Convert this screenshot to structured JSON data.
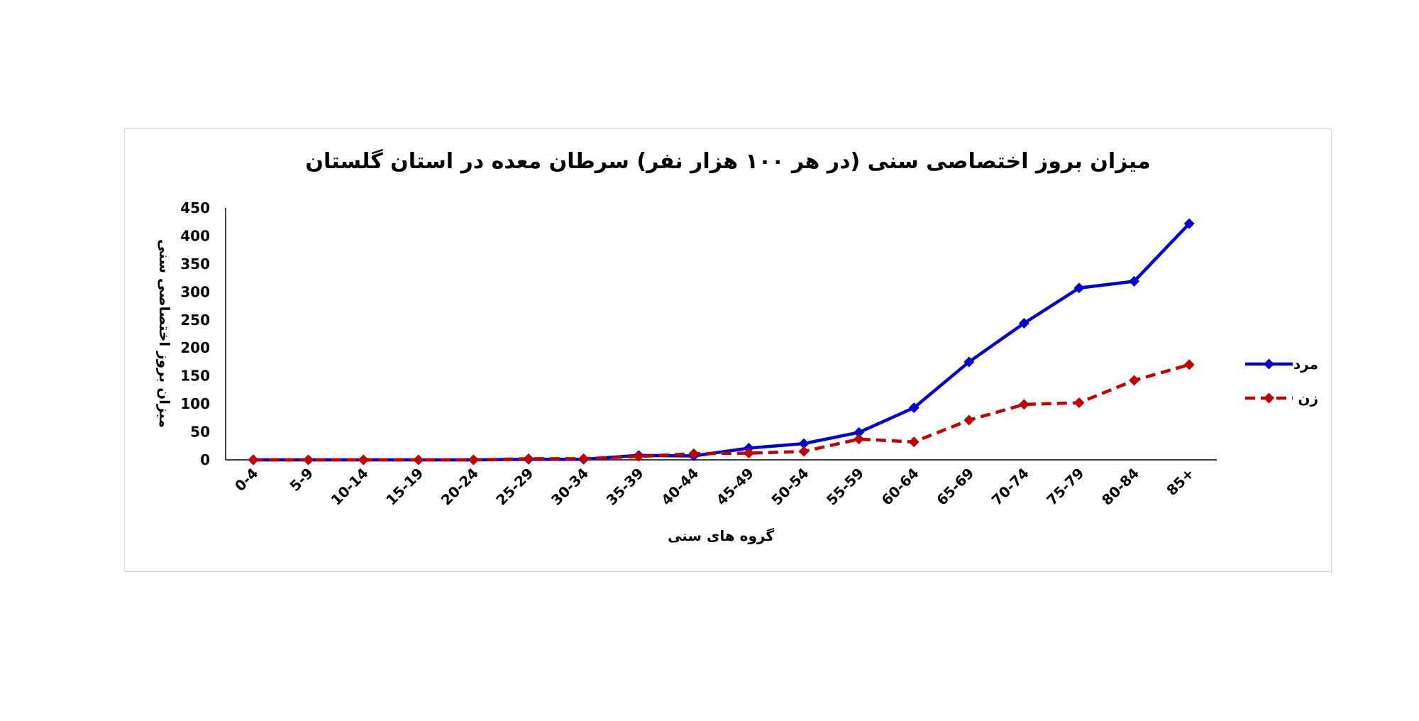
{
  "chart_data": {
    "type": "line",
    "title": "میزان بروز اختصاصی سنی (در هر ۱۰۰ هزار نفر) سرطان معده در استان گلستان",
    "xlabel": "گروه های سنی",
    "ylabel": "میزان بروز اختصاصی سنی",
    "categories": [
      "0-4",
      "5-9",
      "10-14",
      "15-19",
      "20-24",
      "25-29",
      "30-34",
      "35-39",
      "40-44",
      "45-49",
      "50-54",
      "55-59",
      "60-64",
      "65-69",
      "70-74",
      "75-79",
      "80-84",
      "85+"
    ],
    "ylim": [
      0,
      450
    ],
    "yticks": [
      "0",
      "50",
      "100",
      "150",
      "200",
      "250",
      "300",
      "350",
      "400",
      "450"
    ],
    "grid": false,
    "legend_position": "right",
    "series": [
      {
        "name": "مرد",
        "color": "#0000cc",
        "dash": "solid",
        "values": [
          0,
          0,
          0,
          0,
          0,
          1,
          1,
          8,
          7,
          21,
          29,
          49,
          93,
          175,
          244,
          307,
          319,
          422
        ]
      },
      {
        "name": "زن",
        "color": "#c00000",
        "dash": "dashed",
        "values": [
          0,
          0,
          0,
          0,
          0,
          2,
          2,
          6,
          11,
          12,
          15,
          37,
          32,
          71,
          99,
          102,
          142,
          170
        ]
      }
    ]
  }
}
